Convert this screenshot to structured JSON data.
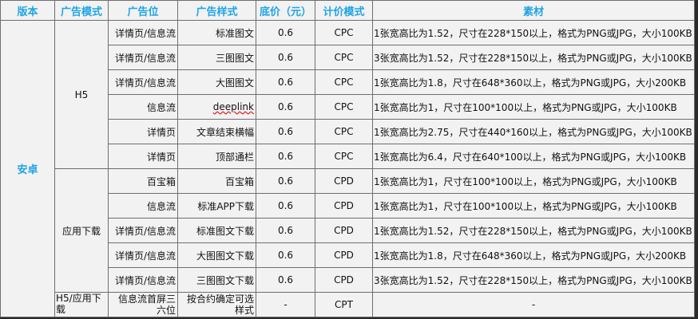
{
  "headers": [
    "版本",
    "广告模式",
    "广告位",
    "广告样式",
    "底价（元）",
    "计价模式",
    "素材"
  ],
  "platform": "安卓",
  "groups": [
    {
      "mode": "H5",
      "rows": [
        {
          "slot": "详情页/信息流",
          "style": "标准图文",
          "price": "0.6",
          "billing": "CPC",
          "material": "1张宽高比为1.52，尺寸在228*150以上，格式为PNG或JPG，大小100KB"
        },
        {
          "slot": "详情页/信息流",
          "style": "三图图文",
          "price": "0.6",
          "billing": "CPC",
          "material": "3张宽高比为1.52，尺寸在228*150以上，格式为PNG或JPG，大小100KB"
        },
        {
          "slot": "详情页/信息流",
          "style": "大图图文",
          "price": "0.6",
          "billing": "CPC",
          "material": "1张宽高比为1.8，尺寸在648*360以上，格式为PNG或JPG，大小200KB"
        },
        {
          "slot": "信息流",
          "style": "deeplink",
          "price": "0.6",
          "billing": "CPC",
          "material": "1张宽高比为1，尺寸在100*100以上，格式为PNG或JPG，大小100KB"
        },
        {
          "slot": "详情页",
          "style": "文章结束横幅",
          "price": "0.6",
          "billing": "CPC",
          "material": "1张宽高比为2.75，尺寸在440*160以上，格式为PNG或JPG，大小100KB"
        },
        {
          "slot": "详情页",
          "style": "顶部通栏",
          "price": "0.6",
          "billing": "CPC",
          "material": "1张宽高比为6.4，尺寸在640*100以上，格式为PNG或JPG，大小100KB"
        }
      ]
    },
    {
      "mode": "应用下载",
      "rows": [
        {
          "slot": "百宝箱",
          "style": "百宝箱",
          "price": "0.6",
          "billing": "CPD",
          "material": "1张宽高比为1，尺寸在100*100以上，格式为PNG或JPG，大小100KB"
        },
        {
          "slot": "信息流",
          "style": "标准APP下载",
          "price": "0.6",
          "billing": "CPD",
          "material": "1张宽高比为1，尺寸在100*100以上，格式为PNG或JPG，大小100KB"
        },
        {
          "slot": "详情页/信息流",
          "style": "标准图文下载",
          "price": "0.6",
          "billing": "CPD",
          "material": "1张宽高比为1.52，尺寸在228*150以上，格式为PNG或JPG，大小100KB"
        },
        {
          "slot": "详情页/信息流",
          "style": "大图图文下载",
          "price": "0.6",
          "billing": "CPD",
          "material": "1张宽高比为1.8，尺寸在648*360以上，格式为PNG或JPG，大小200KB"
        },
        {
          "slot": "详情页/信息流",
          "style": "三图图文下载",
          "price": "0.6",
          "billing": "CPD",
          "material": "3张宽高比为1.52，尺寸在228*150以上，格式为PNG或JPG，大小100KB"
        }
      ]
    },
    {
      "mode": "H5/应用下载",
      "rows": [
        {
          "slot": "信息流首屏三六位",
          "style": "按合约确定可选样式",
          "price": "-",
          "billing": "CPT",
          "material": "-"
        }
      ]
    }
  ],
  "colors": {
    "header_text": "#1ea4e6",
    "cell_bg": "#f2f2f2",
    "spellcheck_underline": "#e02020"
  }
}
